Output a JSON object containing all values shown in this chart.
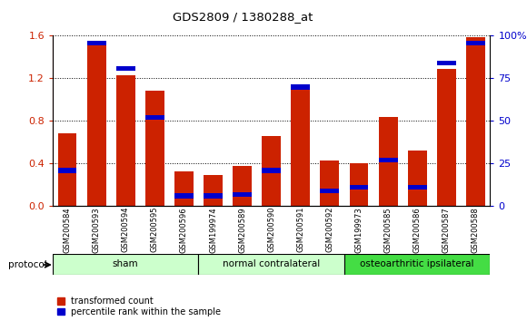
{
  "title": "GDS2809 / 1380288_at",
  "samples": [
    "GSM200584",
    "GSM200593",
    "GSM200594",
    "GSM200595",
    "GSM200596",
    "GSM199974",
    "GSM200589",
    "GSM200590",
    "GSM200591",
    "GSM200592",
    "GSM199973",
    "GSM200585",
    "GSM200586",
    "GSM200587",
    "GSM200588"
  ],
  "red_values": [
    0.68,
    1.55,
    1.22,
    1.08,
    0.32,
    0.29,
    0.37,
    0.65,
    1.13,
    0.42,
    0.4,
    0.83,
    0.52,
    1.28,
    1.58
  ],
  "blue_pct": [
    22,
    97,
    82,
    53,
    7,
    7,
    8,
    22,
    71,
    10,
    12,
    28,
    12,
    85,
    97
  ],
  "ylim_left": [
    0,
    1.6
  ],
  "ylim_right": [
    0,
    100
  ],
  "yticks_left": [
    0,
    0.4,
    0.8,
    1.2,
    1.6
  ],
  "yticks_right": [
    0,
    25,
    50,
    75,
    100
  ],
  "bar_color_red": "#cc2200",
  "bar_color_blue": "#0000cc",
  "bar_width": 0.65,
  "bg_color": "#ffffff",
  "plot_bg": "#ffffff",
  "tick_label_color_left": "#cc2200",
  "tick_label_color_right": "#0000cc",
  "protocol_label": "protocol",
  "legend_red": "transformed count",
  "legend_blue": "percentile rank within the sample",
  "group_labels": [
    "sham",
    "normal contralateral",
    "osteoarthritic ipsilateral"
  ],
  "group_starts": [
    -0.5,
    4.5,
    9.5
  ],
  "group_ends": [
    4.5,
    9.5,
    14.5
  ],
  "group_centers": [
    2.0,
    7.0,
    12.0
  ],
  "group_colors": [
    "#ccffcc",
    "#ccffcc",
    "#44dd44"
  ]
}
